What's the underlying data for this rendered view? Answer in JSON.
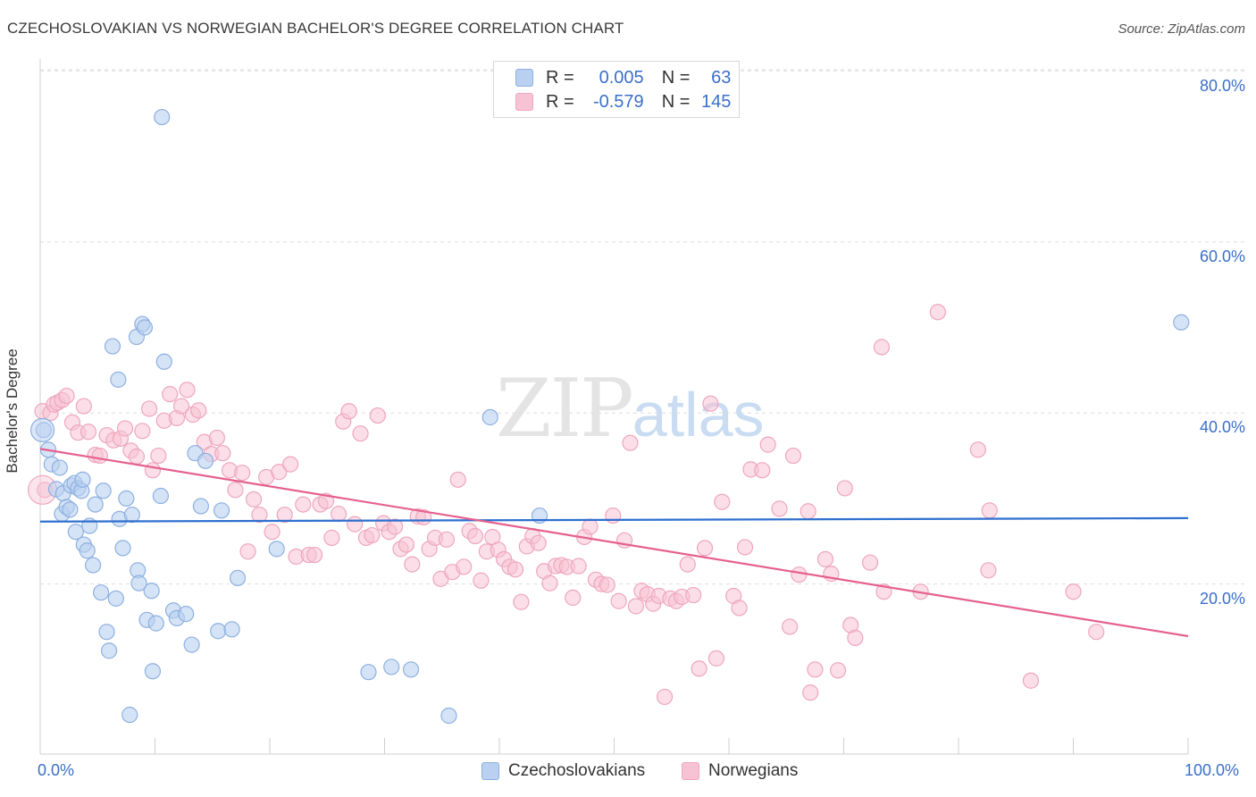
{
  "title": "CZECHOSLOVAKIAN VS NORWEGIAN BACHELOR'S DEGREE CORRELATION CHART",
  "source": "Source: ZipAtlas.com",
  "watermark": {
    "zip": "ZIP",
    "atlas": "atlas"
  },
  "colors": {
    "blue_fill": "#b9d0f0",
    "blue_stroke": "#8db0e0",
    "blue_line": "#2e6fcf",
    "pink_fill": "#f7c3d4",
    "pink_stroke": "#eea6bf",
    "pink_line": "#e5608f",
    "tick_text": "#3a6fc7"
  },
  "legend_top": [
    {
      "r_label": "R =",
      "r_value": "0.005",
      "n_label": "N =",
      "n_value": "63"
    },
    {
      "r_label": "R =",
      "r_value": "-0.579",
      "n_label": "N =",
      "n_value": "145"
    }
  ],
  "chart_data": {
    "type": "scatter",
    "title": "CZECHOSLOVAKIAN VS NORWEGIAN BACHELOR'S DEGREE CORRELATION CHART",
    "xlabel": "",
    "ylabel": "Bachelor's Degree",
    "xlim": [
      0,
      100
    ],
    "ylim": [
      0,
      80
    ],
    "x_tick_labels": [
      "0.0%",
      "100.0%"
    ],
    "y_tick_labels": [
      "20.0%",
      "40.0%",
      "60.0%",
      "80.0%"
    ],
    "y_ticks": [
      20,
      40,
      60,
      80
    ],
    "grid": "horizontal dashed",
    "legend_position": "bottom-center",
    "series": [
      {
        "name": "Czechoslovakians",
        "R": 0.005,
        "N": 63,
        "trend": [
          [
            0,
            27.3
          ],
          [
            100,
            27.7
          ]
        ],
        "points": [
          [
            0.3,
            38.0
          ],
          [
            0.7,
            35.7
          ],
          [
            1.0,
            34.0
          ],
          [
            1.4,
            31.1
          ],
          [
            1.7,
            33.6
          ],
          [
            1.9,
            28.2
          ],
          [
            2.0,
            30.6
          ],
          [
            2.3,
            29.0
          ],
          [
            2.6,
            28.7
          ],
          [
            2.7,
            31.5
          ],
          [
            3.0,
            31.8
          ],
          [
            3.1,
            26.1
          ],
          [
            3.3,
            31.2
          ],
          [
            3.6,
            30.9
          ],
          [
            3.7,
            32.2
          ],
          [
            3.8,
            24.6
          ],
          [
            4.1,
            23.9
          ],
          [
            4.3,
            26.8
          ],
          [
            4.6,
            22.2
          ],
          [
            4.8,
            29.3
          ],
          [
            5.3,
            19.0
          ],
          [
            5.5,
            30.9
          ],
          [
            5.8,
            14.4
          ],
          [
            6.0,
            12.2
          ],
          [
            6.3,
            47.8
          ],
          [
            6.6,
            18.3
          ],
          [
            6.8,
            43.9
          ],
          [
            6.9,
            27.6
          ],
          [
            7.2,
            24.2
          ],
          [
            7.5,
            30.0
          ],
          [
            7.8,
            4.7
          ],
          [
            8.0,
            28.1
          ],
          [
            8.4,
            48.9
          ],
          [
            8.5,
            21.6
          ],
          [
            8.6,
            20.1
          ],
          [
            8.9,
            50.4
          ],
          [
            9.1,
            50.0
          ],
          [
            9.3,
            15.8
          ],
          [
            9.7,
            19.2
          ],
          [
            9.8,
            9.8
          ],
          [
            10.1,
            15.4
          ],
          [
            10.5,
            30.3
          ],
          [
            10.6,
            74.6
          ],
          [
            10.8,
            46.0
          ],
          [
            11.6,
            16.9
          ],
          [
            11.9,
            16.0
          ],
          [
            12.7,
            16.5
          ],
          [
            13.2,
            12.9
          ],
          [
            13.5,
            35.3
          ],
          [
            14.0,
            29.1
          ],
          [
            14.4,
            34.4
          ],
          [
            15.5,
            14.5
          ],
          [
            15.8,
            28.6
          ],
          [
            16.7,
            14.7
          ],
          [
            17.2,
            20.7
          ],
          [
            20.6,
            24.1
          ],
          [
            28.6,
            9.7
          ],
          [
            30.6,
            10.3
          ],
          [
            32.3,
            10.0
          ],
          [
            35.6,
            4.6
          ],
          [
            39.2,
            39.5
          ],
          [
            43.5,
            28.0
          ],
          [
            99.4,
            50.6
          ]
        ]
      },
      {
        "name": "Norwegians",
        "R": -0.579,
        "N": 145,
        "trend": [
          [
            0,
            35.8
          ],
          [
            100,
            13.9
          ]
        ],
        "points": [
          [
            0.2,
            40.2
          ],
          [
            0.4,
            31.0
          ],
          [
            0.9,
            40.0
          ],
          [
            1.2,
            41.0
          ],
          [
            1.5,
            41.2
          ],
          [
            1.9,
            41.5
          ],
          [
            2.3,
            42.0
          ],
          [
            2.8,
            38.9
          ],
          [
            3.3,
            37.7
          ],
          [
            3.8,
            40.8
          ],
          [
            4.2,
            37.8
          ],
          [
            4.8,
            35.1
          ],
          [
            5.2,
            35.0
          ],
          [
            5.8,
            37.4
          ],
          [
            6.4,
            36.8
          ],
          [
            7.0,
            37.0
          ],
          [
            7.4,
            38.2
          ],
          [
            7.9,
            35.6
          ],
          [
            8.4,
            34.9
          ],
          [
            8.9,
            37.9
          ],
          [
            9.5,
            40.5
          ],
          [
            9.8,
            33.3
          ],
          [
            10.3,
            35.0
          ],
          [
            10.8,
            39.1
          ],
          [
            11.3,
            42.2
          ],
          [
            11.9,
            39.4
          ],
          [
            12.3,
            40.8
          ],
          [
            12.8,
            42.7
          ],
          [
            13.3,
            39.8
          ],
          [
            13.8,
            40.3
          ],
          [
            14.3,
            36.6
          ],
          [
            14.9,
            35.2
          ],
          [
            15.4,
            37.1
          ],
          [
            15.9,
            35.3
          ],
          [
            16.5,
            33.3
          ],
          [
            17.0,
            31.0
          ],
          [
            17.6,
            33.0
          ],
          [
            18.1,
            23.8
          ],
          [
            18.6,
            29.9
          ],
          [
            19.1,
            28.1
          ],
          [
            19.7,
            32.5
          ],
          [
            20.2,
            26.1
          ],
          [
            20.8,
            33.1
          ],
          [
            21.3,
            28.1
          ],
          [
            21.8,
            34.0
          ],
          [
            22.3,
            23.2
          ],
          [
            22.9,
            29.3
          ],
          [
            23.4,
            23.4
          ],
          [
            23.9,
            23.4
          ],
          [
            24.4,
            29.3
          ],
          [
            24.9,
            29.7
          ],
          [
            25.4,
            25.4
          ],
          [
            26.0,
            28.2
          ],
          [
            26.4,
            39.0
          ],
          [
            26.9,
            40.2
          ],
          [
            27.4,
            27.0
          ],
          [
            27.9,
            37.6
          ],
          [
            28.4,
            25.4
          ],
          [
            28.9,
            25.7
          ],
          [
            29.4,
            39.7
          ],
          [
            29.9,
            27.1
          ],
          [
            30.4,
            26.1
          ],
          [
            30.9,
            26.7
          ],
          [
            31.4,
            24.1
          ],
          [
            31.9,
            24.6
          ],
          [
            32.4,
            22.3
          ],
          [
            32.9,
            27.9
          ],
          [
            33.4,
            27.8
          ],
          [
            33.9,
            24.1
          ],
          [
            34.4,
            25.4
          ],
          [
            34.9,
            20.6
          ],
          [
            35.4,
            25.2
          ],
          [
            35.9,
            21.4
          ],
          [
            36.4,
            32.2
          ],
          [
            36.9,
            22.0
          ],
          [
            37.4,
            26.2
          ],
          [
            37.9,
            25.6
          ],
          [
            38.4,
            20.4
          ],
          [
            38.9,
            23.8
          ],
          [
            39.4,
            25.5
          ],
          [
            39.9,
            24.0
          ],
          [
            40.4,
            22.9
          ],
          [
            40.9,
            22.0
          ],
          [
            41.4,
            21.7
          ],
          [
            41.9,
            17.9
          ],
          [
            42.4,
            24.4
          ],
          [
            42.9,
            25.6
          ],
          [
            43.4,
            24.8
          ],
          [
            43.9,
            21.5
          ],
          [
            44.4,
            20.1
          ],
          [
            44.9,
            22.1
          ],
          [
            45.4,
            22.2
          ],
          [
            45.9,
            22.0
          ],
          [
            46.4,
            18.4
          ],
          [
            46.9,
            22.1
          ],
          [
            47.4,
            25.5
          ],
          [
            47.9,
            26.7
          ],
          [
            48.4,
            20.5
          ],
          [
            48.9,
            20.0
          ],
          [
            49.4,
            19.9
          ],
          [
            49.9,
            28.0
          ],
          [
            50.4,
            18.0
          ],
          [
            50.9,
            25.1
          ],
          [
            51.4,
            36.5
          ],
          [
            51.9,
            17.4
          ],
          [
            52.4,
            19.2
          ],
          [
            52.9,
            18.8
          ],
          [
            53.4,
            17.7
          ],
          [
            53.9,
            18.6
          ],
          [
            54.4,
            6.8
          ],
          [
            54.9,
            18.3
          ],
          [
            55.4,
            18.0
          ],
          [
            55.9,
            18.5
          ],
          [
            56.4,
            22.3
          ],
          [
            56.9,
            18.7
          ],
          [
            57.4,
            10.1
          ],
          [
            57.9,
            24.2
          ],
          [
            58.4,
            41.1
          ],
          [
            58.9,
            11.3
          ],
          [
            59.4,
            29.6
          ],
          [
            60.4,
            18.6
          ],
          [
            60.9,
            17.2
          ],
          [
            61.4,
            24.3
          ],
          [
            61.9,
            33.4
          ],
          [
            62.9,
            33.3
          ],
          [
            63.4,
            36.3
          ],
          [
            64.4,
            28.8
          ],
          [
            65.3,
            15.0
          ],
          [
            65.6,
            35.0
          ],
          [
            66.1,
            21.1
          ],
          [
            66.9,
            28.5
          ],
          [
            67.5,
            10.0
          ],
          [
            67.1,
            7.3
          ],
          [
            68.4,
            22.9
          ],
          [
            68.9,
            21.2
          ],
          [
            69.5,
            9.9
          ],
          [
            70.1,
            31.2
          ],
          [
            70.6,
            15.2
          ],
          [
            71.0,
            13.7
          ],
          [
            72.3,
            22.5
          ],
          [
            73.3,
            47.7
          ],
          [
            73.5,
            19.1
          ],
          [
            76.7,
            19.1
          ],
          [
            78.2,
            51.8
          ],
          [
            81.7,
            35.7
          ],
          [
            82.7,
            28.6
          ],
          [
            82.6,
            21.6
          ],
          [
            86.3,
            8.7
          ],
          [
            90.0,
            19.1
          ],
          [
            92.0,
            14.4
          ]
        ]
      }
    ]
  },
  "bottom_legend": [
    "Czechoslovakians",
    "Norwegians"
  ]
}
